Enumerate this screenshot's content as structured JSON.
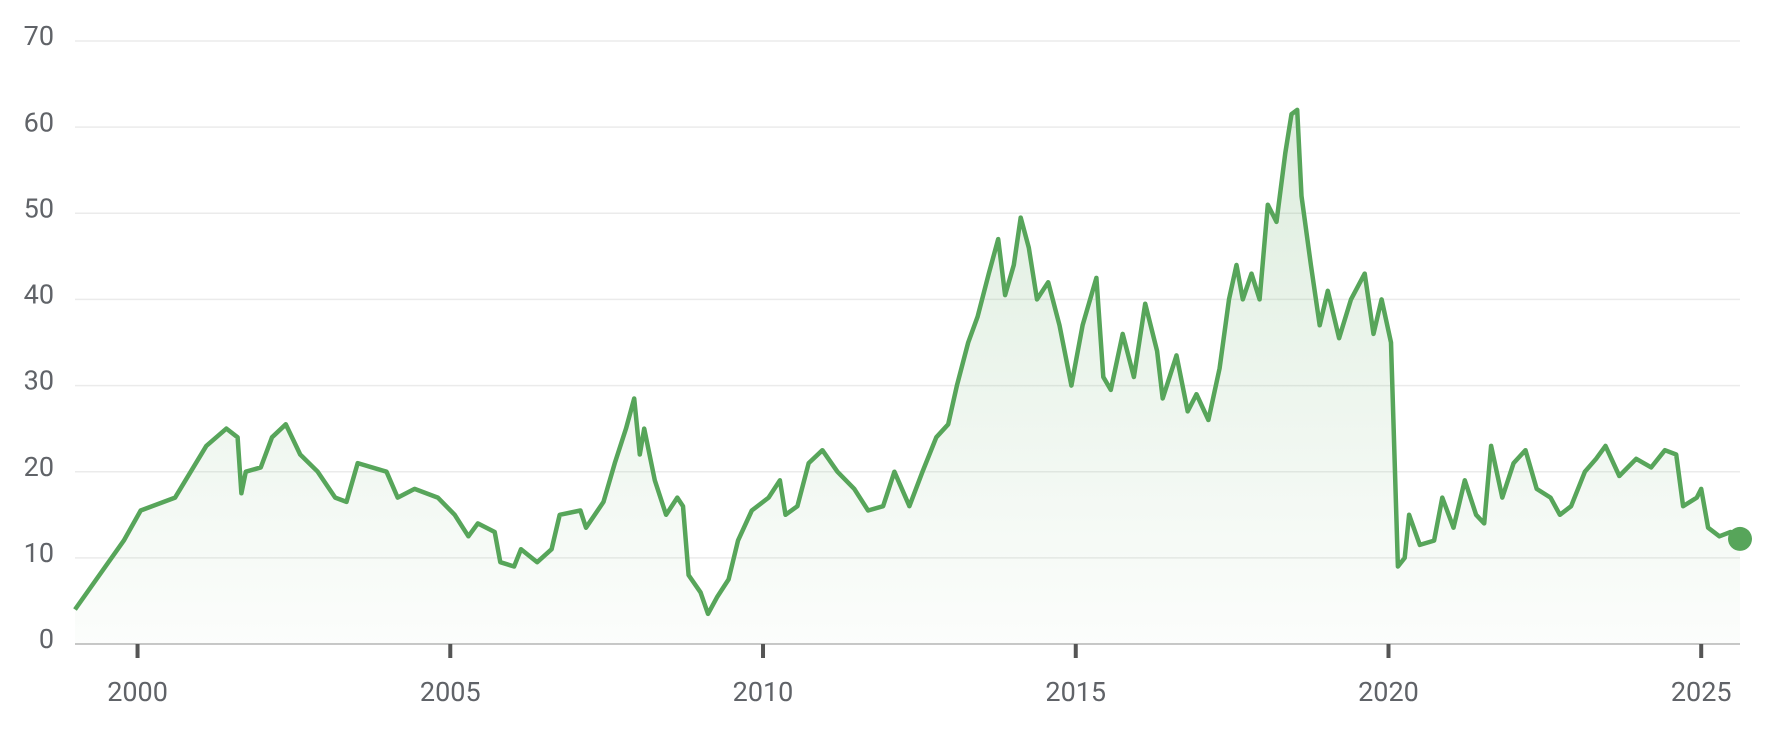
{
  "chart_data": {
    "type": "line",
    "x": [
      1999.0,
      1999.78,
      2000.05,
      2000.6,
      2001.1,
      2001.42,
      2001.6,
      2001.66,
      2001.73,
      2001.97,
      2002.15,
      2002.37,
      2002.6,
      2002.88,
      2003.16,
      2003.34,
      2003.52,
      2003.98,
      2004.16,
      2004.43,
      2004.8,
      2005.07,
      2005.29,
      2005.44,
      2005.71,
      2005.8,
      2006.02,
      2006.13,
      2006.39,
      2006.62,
      2006.75,
      2007.08,
      2007.17,
      2007.45,
      2007.63,
      2007.81,
      2007.94,
      2008.03,
      2008.1,
      2008.27,
      2008.45,
      2008.63,
      2008.72,
      2008.81,
      2009.0,
      2009.12,
      2009.27,
      2009.45,
      2009.6,
      2009.82,
      2010.09,
      2010.27,
      2010.36,
      2010.55,
      2010.73,
      2010.95,
      2011.19,
      2011.46,
      2011.68,
      2011.92,
      2012.1,
      2012.34,
      2012.55,
      2012.77,
      2012.96,
      2013.1,
      2013.28,
      2013.43,
      2013.61,
      2013.76,
      2013.87,
      2014.01,
      2014.12,
      2014.25,
      2014.38,
      2014.56,
      2014.74,
      2014.93,
      2015.11,
      2015.33,
      2015.44,
      2015.56,
      2015.75,
      2015.93,
      2016.11,
      2016.3,
      2016.39,
      2016.61,
      2016.79,
      2016.93,
      2017.12,
      2017.3,
      2017.45,
      2017.57,
      2017.67,
      2017.81,
      2017.94,
      2018.07,
      2018.21,
      2018.35,
      2018.45,
      2018.54,
      2018.61,
      2018.76,
      2018.9,
      2019.03,
      2019.21,
      2019.4,
      2019.62,
      2019.76,
      2019.89,
      2020.04,
      2020.15,
      2020.26,
      2020.33,
      2020.5,
      2020.73,
      2020.86,
      2021.04,
      2021.22,
      2021.4,
      2021.53,
      2021.64,
      2021.82,
      2022.0,
      2022.19,
      2022.37,
      2022.59,
      2022.74,
      2022.92,
      2023.14,
      2023.32,
      2023.47,
      2023.69,
      2023.96,
      2024.2,
      2024.42,
      2024.6,
      2024.71,
      2024.93,
      2025.0,
      2025.11,
      2025.29,
      2025.47,
      2025.62
    ],
    "values": [
      4,
      12,
      15.5,
      17,
      23,
      25,
      24,
      17.5,
      20,
      20.5,
      24,
      25.5,
      22,
      20,
      17,
      16.5,
      21,
      20,
      17,
      18,
      17,
      15,
      12.5,
      14,
      13,
      9.5,
      9,
      11,
      9.5,
      11,
      15,
      15.5,
      13.5,
      16.5,
      21,
      25,
      28.5,
      22,
      25,
      19,
      15,
      17,
      16,
      8,
      6,
      3.5,
      5.5,
      7.5,
      12,
      15.5,
      17,
      19,
      15,
      16,
      21,
      22.5,
      20,
      18,
      15.5,
      16,
      20,
      16,
      20,
      24,
      25.5,
      30,
      35,
      38,
      43,
      47,
      40.5,
      44,
      49.5,
      46,
      40,
      42,
      37,
      30,
      37,
      42.5,
      31,
      29.5,
      36,
      31,
      39.5,
      34,
      28.5,
      33.5,
      27,
      29,
      26,
      32,
      40,
      44,
      40,
      43,
      40,
      51,
      49,
      57,
      61.5,
      62,
      52,
      44,
      37,
      41,
      35.5,
      40,
      43,
      36,
      40,
      35,
      9,
      10,
      15,
      11.5,
      12,
      17,
      13.5,
      19,
      15,
      14,
      23,
      17,
      21,
      22.5,
      18,
      17,
      15,
      16,
      20,
      21.5,
      23,
      19.5,
      21.5,
      20.5,
      22.5,
      22,
      16,
      17,
      18,
      13.5,
      12.5,
      13,
      12.2
    ],
    "color": "#57a55a",
    "xlim": [
      1999.0,
      2025.62
    ],
    "xticks": [
      2000,
      2005,
      2010,
      2015,
      2020,
      2025
    ],
    "ylim": [
      0,
      70
    ],
    "yticks": [
      0,
      10,
      20,
      30,
      40,
      50,
      60,
      70
    ],
    "grid": true
  }
}
